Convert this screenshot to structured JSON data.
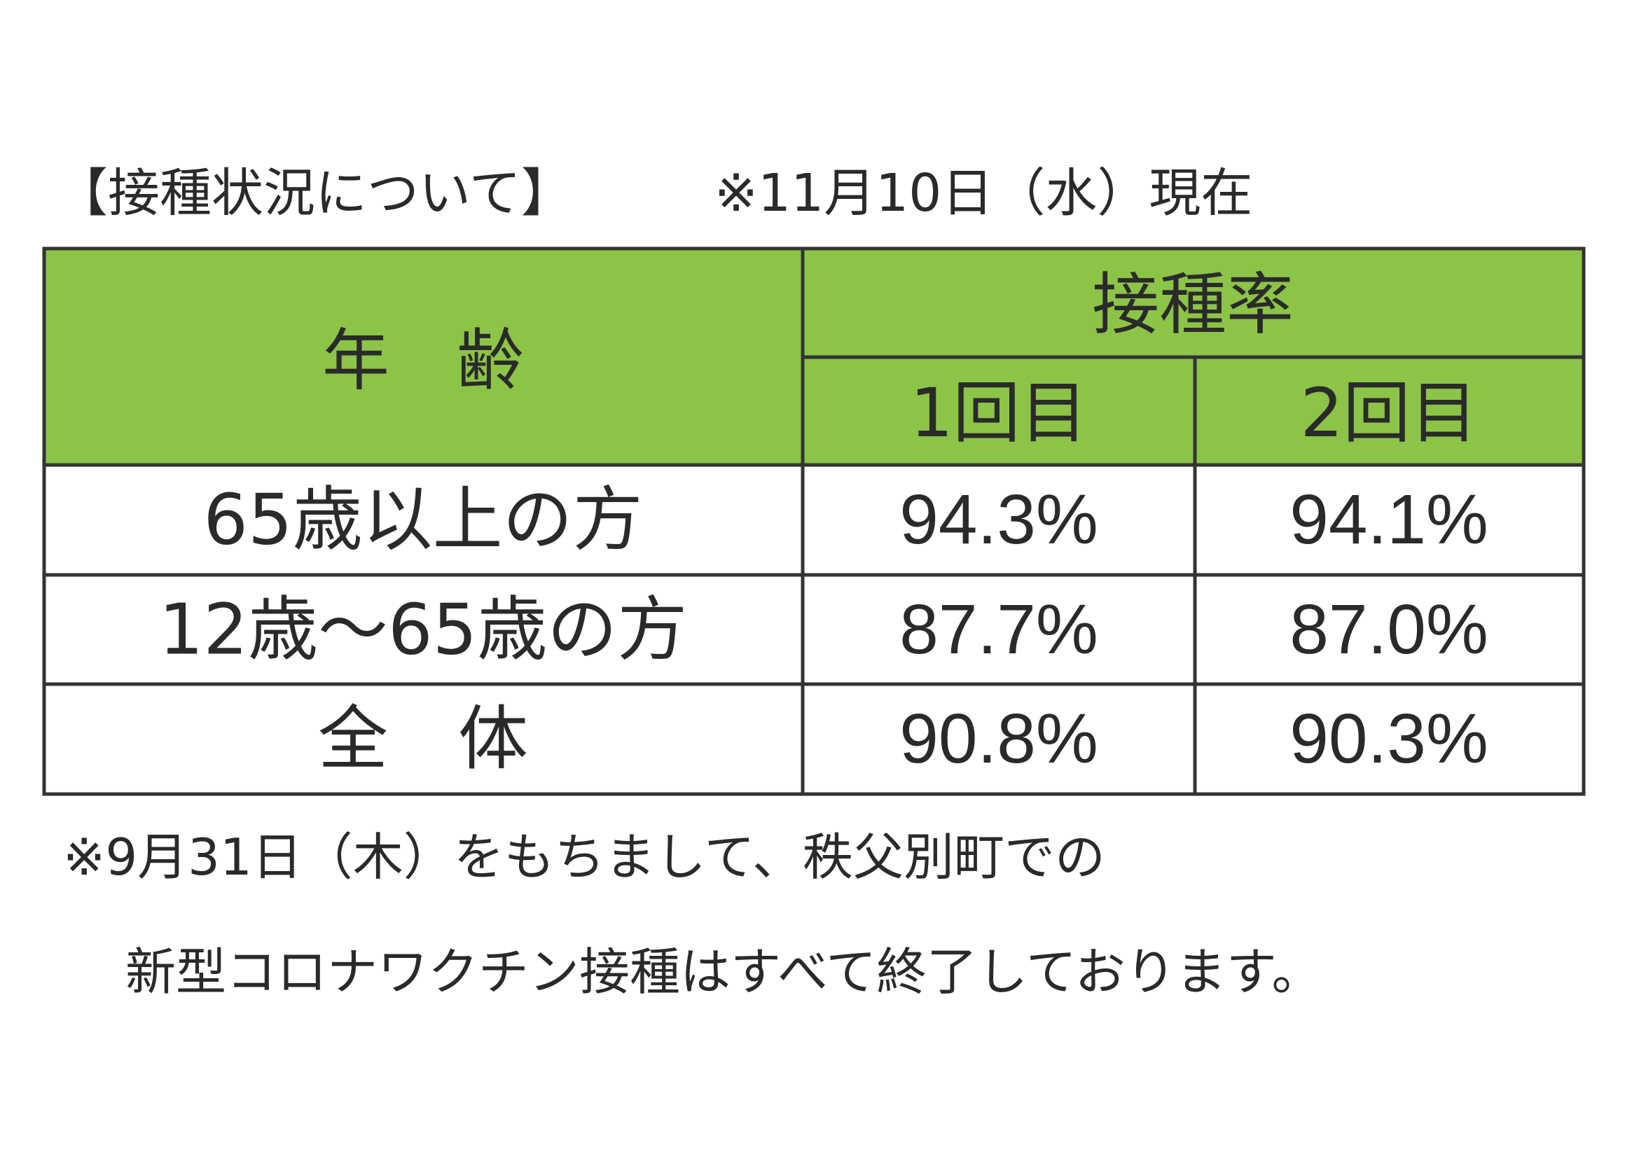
{
  "header": {
    "title": "【接種状況について】",
    "date": "※11月10日（水）現在"
  },
  "table": {
    "headers": {
      "age": "年　齢",
      "rate": "接種率",
      "first": "1回目",
      "second": "2回目"
    },
    "rows": [
      [
        "65歳以上の方",
        "94.3%",
        "94.1%"
      ],
      [
        "12歳～65歳の方",
        "87.7%",
        "87.0%"
      ],
      [
        "全　体",
        "90.8%",
        "90.3%"
      ]
    ]
  },
  "notes": [
    "※9月31日（木）をもちまして、秩父別町での",
    "新型コロナワクチン接種はすべて終了しております。"
  ]
}
